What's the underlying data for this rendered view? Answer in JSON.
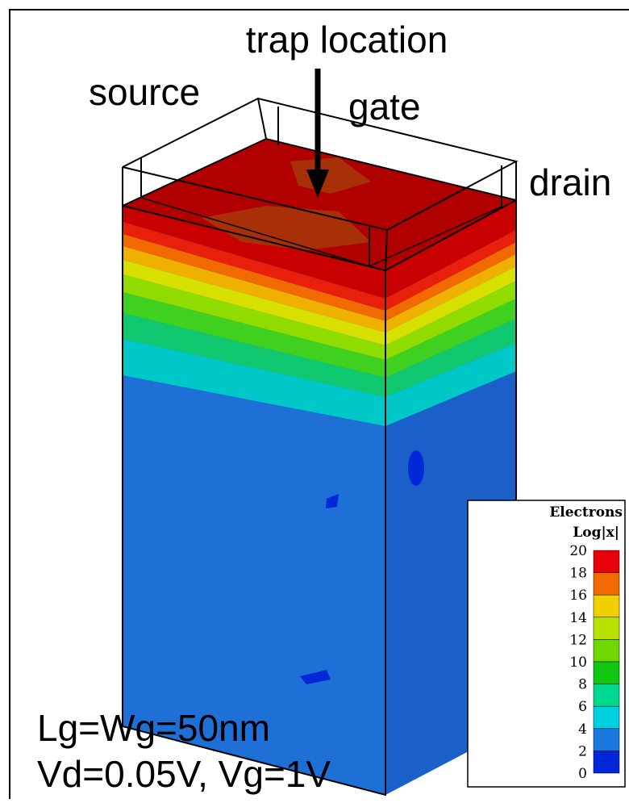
{
  "labels": {
    "trap": "trap location",
    "source": "source",
    "gate": "gate",
    "drain": "drain",
    "dims": "Lg=Wg=50nm",
    "bias": "Vd=0.05V, Vg=1V"
  },
  "legend": {
    "title": "Electrons",
    "subtitle": "Log|x|",
    "ticks": [
      20,
      18,
      16,
      14,
      12,
      10,
      8,
      6,
      4,
      2,
      0
    ],
    "colors": [
      "#e8000b",
      "#f06a00",
      "#f0d000",
      "#b8e000",
      "#70d800",
      "#10c810",
      "#00d890",
      "#00d0e0",
      "#1a78e0",
      "#0028d8"
    ]
  }
}
